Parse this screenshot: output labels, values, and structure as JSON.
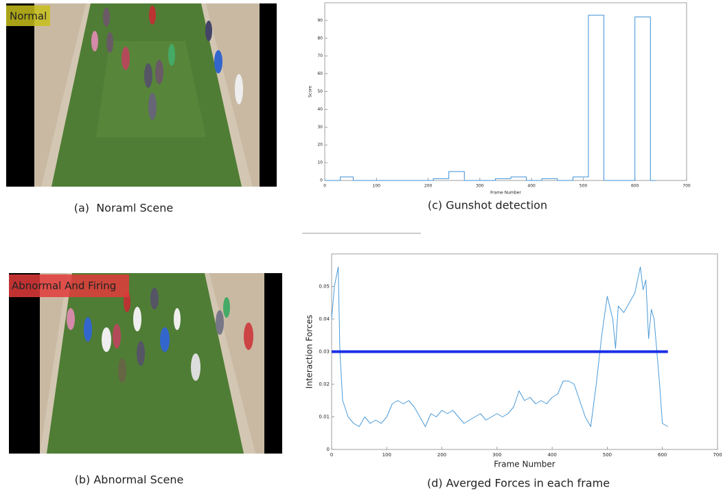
{
  "images": [
    {
      "overlay": "Normal",
      "caption": "(a)  Noraml Scene"
    },
    {
      "overlay": "Abnormal And Firing",
      "caption": "(b) Abnormal Scene"
    }
  ],
  "chart_data": [
    {
      "type": "line",
      "caption": "(c) Gunshot detection",
      "xlabel": "Frame Number",
      "ylabel": "Score",
      "xlim": [
        0,
        700
      ],
      "xticks": [
        0,
        100,
        200,
        300,
        400,
        500,
        600,
        700
      ],
      "ylim": [
        0,
        100
      ],
      "yticks": [
        0,
        10,
        20,
        30,
        40,
        50,
        60,
        70,
        80,
        90
      ],
      "series": [
        {
          "color": "#3c8fd6",
          "x": [
            0,
            30,
            30,
            55,
            55,
            210,
            210,
            240,
            240,
            270,
            270,
            330,
            330,
            360,
            360,
            390,
            390,
            420,
            420,
            450,
            450,
            480,
            480,
            510,
            510,
            540,
            540,
            600,
            600,
            630,
            630,
            640
          ],
          "values": [
            0,
            0,
            2,
            2,
            0,
            0,
            1,
            1,
            5,
            5,
            0,
            0,
            1,
            1,
            2,
            2,
            0,
            0,
            1,
            1,
            0,
            0,
            2,
            2,
            93,
            93,
            0,
            0,
            92,
            92,
            0,
            0
          ]
        }
      ]
    },
    {
      "type": "line",
      "caption": "(d) Averged Forces in each frame",
      "xlabel": "Frame Number",
      "ylabel": "Interaction Forces",
      "xlim": [
        0,
        700
      ],
      "xticks": [
        0,
        100,
        200,
        300,
        400,
        500,
        600,
        700
      ],
      "ylim": [
        0,
        0.06
      ],
      "yticks": [
        0,
        0.01,
        0.02,
        0.03,
        0.04,
        0.05
      ],
      "series": [
        {
          "color": "#4a9ad8",
          "x": [
            0,
            5,
            12,
            15,
            20,
            30,
            40,
            50,
            60,
            70,
            80,
            90,
            100,
            110,
            120,
            130,
            140,
            150,
            160,
            170,
            180,
            190,
            200,
            210,
            220,
            230,
            240,
            250,
            260,
            270,
            280,
            290,
            300,
            310,
            320,
            330,
            340,
            350,
            360,
            370,
            380,
            390,
            400,
            410,
            420,
            430,
            440,
            450,
            460,
            470,
            480,
            490,
            500,
            510,
            515,
            520,
            530,
            540,
            550,
            560,
            565,
            570,
            575,
            580,
            585,
            590,
            595,
            600,
            610
          ],
          "values": [
            0.04,
            0.05,
            0.056,
            0.03,
            0.015,
            0.01,
            0.008,
            0.007,
            0.01,
            0.008,
            0.009,
            0.008,
            0.01,
            0.014,
            0.015,
            0.014,
            0.015,
            0.013,
            0.01,
            0.007,
            0.011,
            0.01,
            0.012,
            0.011,
            0.012,
            0.01,
            0.008,
            0.009,
            0.01,
            0.011,
            0.009,
            0.01,
            0.011,
            0.01,
            0.011,
            0.013,
            0.018,
            0.015,
            0.016,
            0.014,
            0.015,
            0.014,
            0.016,
            0.017,
            0.021,
            0.021,
            0.02,
            0.015,
            0.01,
            0.007,
            0.02,
            0.035,
            0.047,
            0.04,
            0.031,
            0.044,
            0.042,
            0.045,
            0.048,
            0.056,
            0.049,
            0.052,
            0.034,
            0.043,
            0.04,
            0.03,
            0.02,
            0.008,
            0.007
          ]
        },
        {
          "color": "#1a2ee6",
          "x": [
            0,
            610
          ],
          "values": [
            0.03,
            0.03
          ]
        }
      ]
    }
  ]
}
